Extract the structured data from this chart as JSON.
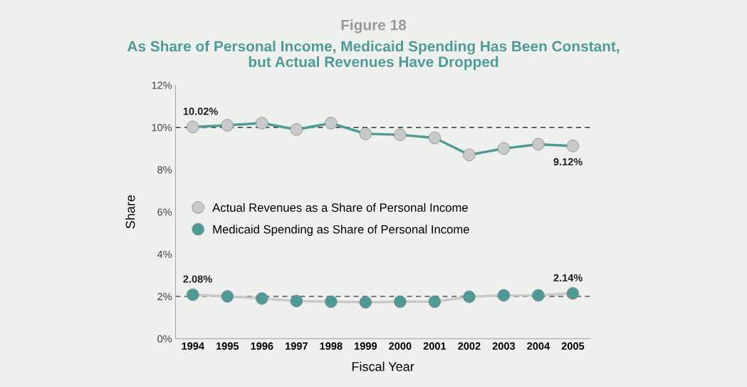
{
  "chart_data": {
    "type": "line",
    "title": "Figure 18",
    "subtitle": "As Share of Personal Income, Medicaid Spending Has Been Constant,\nbut Actual Revenues Have Dropped",
    "xlabel": "Fiscal Year",
    "ylabel": "Share",
    "categories": [
      "1994",
      "1995",
      "1996",
      "1997",
      "1998",
      "1999",
      "2000",
      "2001",
      "2002",
      "2003",
      "2004",
      "2005"
    ],
    "series": [
      {
        "name": "Actual Revenues as a Share of Personal Income",
        "color": "#c8c9c9",
        "values": [
          10.02,
          10.1,
          10.2,
          9.9,
          10.2,
          9.7,
          9.65,
          9.5,
          8.7,
          9.0,
          9.2,
          9.12
        ],
        "value_labels": [
          "10.02%",
          null,
          null,
          null,
          null,
          null,
          null,
          null,
          null,
          null,
          null,
          "9.12%"
        ]
      },
      {
        "name": "Medicaid Spending as Share of Personal Income",
        "color": "#4e9a97",
        "values": [
          2.08,
          2.0,
          1.9,
          1.78,
          1.75,
          1.72,
          1.75,
          1.75,
          1.98,
          2.05,
          2.05,
          2.14
        ],
        "value_labels": [
          "2.08%",
          null,
          null,
          null,
          null,
          null,
          null,
          null,
          null,
          null,
          null,
          "2.14%"
        ]
      }
    ],
    "ylim": [
      0,
      12
    ],
    "yticks": [
      {
        "value": 0,
        "label": "0%"
      },
      {
        "value": 2,
        "label": "2%"
      },
      {
        "value": 4,
        "label": "4%"
      },
      {
        "value": 6,
        "label": "6%"
      },
      {
        "value": 8,
        "label": "8%"
      },
      {
        "value": 10,
        "label": "10%"
      },
      {
        "value": 12,
        "label": "12%"
      }
    ],
    "ref_lines": [
      {
        "axis": "y",
        "value": 10,
        "color": "#333333",
        "line_style": "dashed"
      },
      {
        "axis": "y",
        "value": 2,
        "color": "#333333",
        "line_style": "dashed"
      }
    ],
    "marker": "circle",
    "line_style": "solid",
    "grid": false,
    "legend": "left"
  }
}
